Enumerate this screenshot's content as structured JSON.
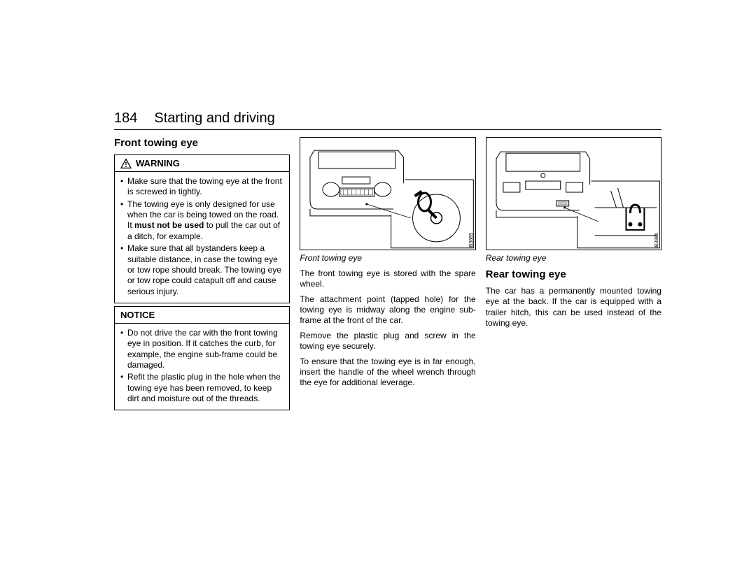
{
  "page": {
    "number": "184",
    "chapter": "Starting and driving"
  },
  "col1": {
    "heading": "Front towing eye",
    "warning": {
      "label": "WARNING",
      "items": [
        "Make sure that the towing eye at the front is screwed in tightly.",
        "The towing eye is only designed for use when the car is being towed on the road. It __BOLD__must not be used__END__ to pull the car out of a ditch, for example.",
        "Make sure that all bystanders keep a suitable distance, in case the towing eye or tow rope should break. The towing eye or tow rope could catapult off and cause serious injury."
      ]
    },
    "notice": {
      "label": "NOTICE",
      "items": [
        "Do not drive the car with the front towing eye in position. If it catches the curb, for example, the engine sub-frame could be damaged.",
        "Refit the plastic plug in the hole when the towing eye has been removed, to keep dirt and moisture out of the threads."
      ]
    }
  },
  "col2": {
    "fig_id": "IB3885",
    "caption": "Front towing eye",
    "paragraphs": [
      "The front towing eye is stored with the spare wheel.",
      "The attachment point (tapped hole) for the towing eye is midway along the engine sub-frame at the front of the car.",
      "Remove the plastic plug and screw in the towing eye securely.",
      "To ensure that the towing eye is in far enough, insert the handle of the wheel wrench through the eye for additional leverage."
    ]
  },
  "col3": {
    "fig_id": "IB3886",
    "caption": "Rear towing eye",
    "heading": "Rear towing eye",
    "paragraphs": [
      "The car has a permanently mounted towing eye at the back. If the car is equipped with a trailer hitch, this can be used instead of the towing eye."
    ]
  }
}
